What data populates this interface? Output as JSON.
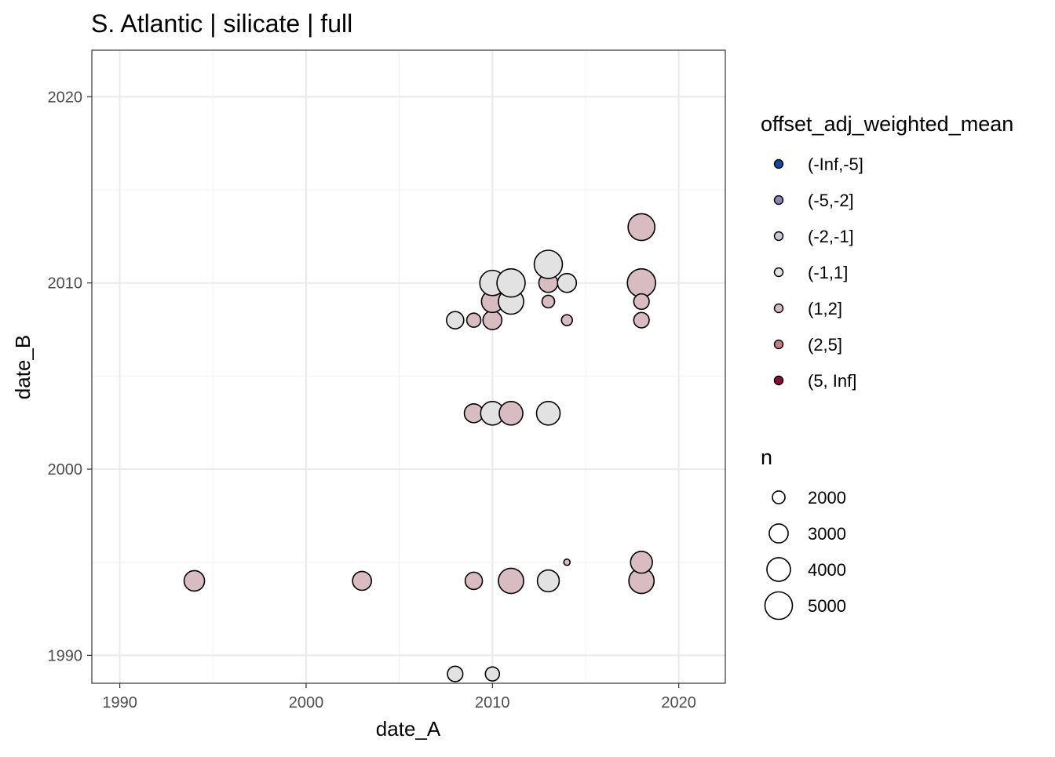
{
  "chart_data": {
    "type": "scatter",
    "title": "S. Atlantic | silicate | full",
    "xlabel": "date_A",
    "ylabel": "date_B",
    "xlim": [
      1988.5,
      2022.5
    ],
    "ylim": [
      1988.5,
      2022.5
    ],
    "xticks": [
      1990,
      2000,
      2010,
      2020
    ],
    "yticks": [
      1990,
      2000,
      2010,
      2020
    ],
    "grid": true,
    "legend_position": "right",
    "color_legend": {
      "title": "offset_adj_weighted_mean",
      "entries": [
        {
          "label": "(-Inf,-5]",
          "color": "#0b4c9e"
        },
        {
          "label": "(-5,-2]",
          "color": "#8589b6"
        },
        {
          "label": "(-2,-1]",
          "color": "#c6c8dc"
        },
        {
          "label": "(-1,1]",
          "color": "#e2e2e2"
        },
        {
          "label": "(1,2]",
          "color": "#d9bcc2"
        },
        {
          "label": "(2,5]",
          "color": "#c07f89"
        },
        {
          "label": "(5, Inf]",
          "color": "#8c0d3c"
        }
      ]
    },
    "size_legend": {
      "title": "n",
      "entries": [
        2000,
        3000,
        4000,
        5000
      ]
    },
    "points": [
      {
        "x": 1994,
        "y": 1994,
        "n": 3300,
        "bin": "(1,2]"
      },
      {
        "x": 2003,
        "y": 1994,
        "n": 3000,
        "bin": "(1,2]"
      },
      {
        "x": 2009,
        "y": 1994,
        "n": 2700,
        "bin": "(1,2]"
      },
      {
        "x": 2011,
        "y": 1994,
        "n": 4400,
        "bin": "(1,2]"
      },
      {
        "x": 2013,
        "y": 1994,
        "n": 3600,
        "bin": "(-1,1]"
      },
      {
        "x": 2014,
        "y": 1995,
        "n": 1400,
        "bin": "(1,2]"
      },
      {
        "x": 2018,
        "y": 1994,
        "n": 4400,
        "bin": "(1,2]"
      },
      {
        "x": 2018,
        "y": 1995,
        "n": 3600,
        "bin": "(1,2]"
      },
      {
        "x": 2008,
        "y": 1989,
        "n": 2400,
        "bin": "(-1,1]"
      },
      {
        "x": 2010,
        "y": 1989,
        "n": 2200,
        "bin": "(-1,1]"
      },
      {
        "x": 2009,
        "y": 2003,
        "n": 3000,
        "bin": "(1,2]"
      },
      {
        "x": 2010,
        "y": 2003,
        "n": 4000,
        "bin": "(-1,1]"
      },
      {
        "x": 2011,
        "y": 2003,
        "n": 4000,
        "bin": "(1,2]"
      },
      {
        "x": 2013,
        "y": 2003,
        "n": 4000,
        "bin": "(-1,1]"
      },
      {
        "x": 2008,
        "y": 2008,
        "n": 2700,
        "bin": "(-1,1]"
      },
      {
        "x": 2009,
        "y": 2008,
        "n": 2200,
        "bin": "(1,2]"
      },
      {
        "x": 2010,
        "y": 2008,
        "n": 3000,
        "bin": "(1,2]"
      },
      {
        "x": 2010,
        "y": 2009,
        "n": 3600,
        "bin": "(1,2]"
      },
      {
        "x": 2011,
        "y": 2009,
        "n": 4400,
        "bin": "(-1,1]"
      },
      {
        "x": 2010,
        "y": 2010,
        "n": 4400,
        "bin": "(-1,1]"
      },
      {
        "x": 2011,
        "y": 2010,
        "n": 5200,
        "bin": "(-1,1]"
      },
      {
        "x": 2013,
        "y": 2010,
        "n": 3000,
        "bin": "(1,2]"
      },
      {
        "x": 2013,
        "y": 2011,
        "n": 5200,
        "bin": "(-1,1]"
      },
      {
        "x": 2013,
        "y": 2009,
        "n": 2000,
        "bin": "(1,2]"
      },
      {
        "x": 2014,
        "y": 2010,
        "n": 3000,
        "bin": "(-1,1]"
      },
      {
        "x": 2014,
        "y": 2008,
        "n": 1800,
        "bin": "(1,2]"
      },
      {
        "x": 2018,
        "y": 2013,
        "n": 4800,
        "bin": "(1,2]"
      },
      {
        "x": 2018,
        "y": 2010,
        "n": 5200,
        "bin": "(1,2]"
      },
      {
        "x": 2018,
        "y": 2009,
        "n": 2400,
        "bin": "(1,2]"
      },
      {
        "x": 2018,
        "y": 2008,
        "n": 2400,
        "bin": "(1,2]"
      }
    ]
  }
}
